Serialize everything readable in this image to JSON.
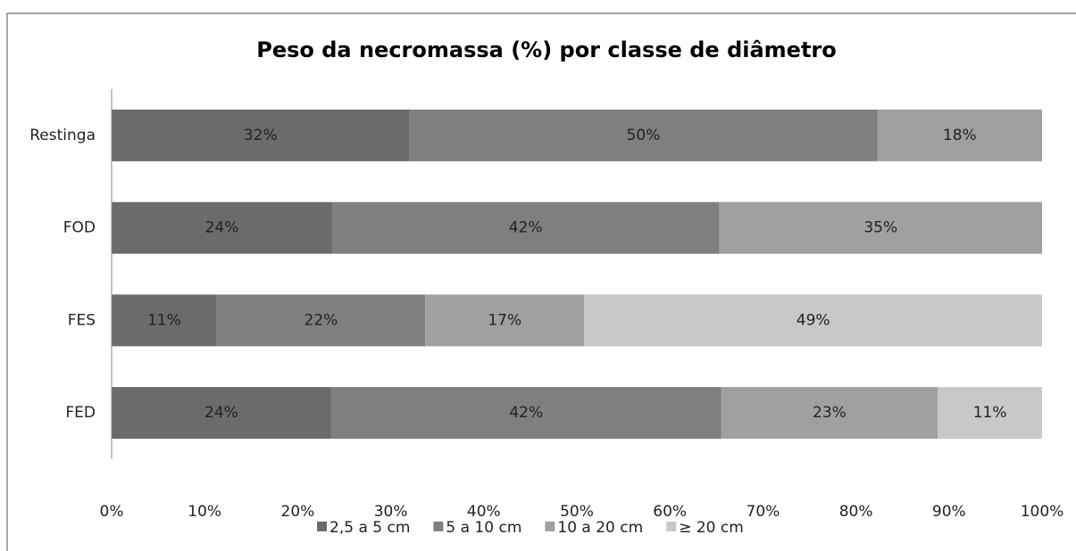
{
  "chart_data": {
    "type": "bar",
    "orientation": "horizontal",
    "stacked": true,
    "title": "Peso da necromassa (%) por classe de diâmetro",
    "categories": [
      "Restinga",
      "FOD",
      "FES",
      "FED"
    ],
    "series": [
      {
        "name": "2,5 a 5 cm",
        "color": "#6b6b6b",
        "values": [
          32,
          23.7,
          11.3,
          23.6
        ],
        "value_labels": [
          "32%",
          "24%",
          "11%",
          "24%"
        ]
      },
      {
        "name": "5 a 10 cm",
        "color": "#7f7f7f",
        "values": [
          50.3,
          41.6,
          22.4,
          41.9
        ],
        "value_labels": [
          "50%",
          "42%",
          "22%",
          "42%"
        ]
      },
      {
        "name": "10 a 20 cm",
        "color": "#a0a0a0",
        "values": [
          17.7,
          34.7,
          17.1,
          23.3
        ],
        "value_labels": [
          "18%",
          "35%",
          "17%",
          "23%"
        ]
      },
      {
        "name": "≥ 20 cm",
        "color": "#c8c8c8",
        "values": [
          null,
          null,
          49.2,
          11.2
        ],
        "value_labels": [
          null,
          null,
          "49%",
          "11%"
        ]
      }
    ],
    "xlim": [
      0,
      100
    ],
    "xticks": [
      {
        "value": 0,
        "label": "0%"
      },
      {
        "value": 10,
        "label": "10%"
      },
      {
        "value": 20,
        "label": "20%"
      },
      {
        "value": 30,
        "label": "30%"
      },
      {
        "value": 40,
        "label": "40%"
      },
      {
        "value": 50,
        "label": "50%"
      },
      {
        "value": 60,
        "label": "60%"
      },
      {
        "value": 70,
        "label": "70%"
      },
      {
        "value": 80,
        "label": "80%"
      },
      {
        "value": 90,
        "label": "90%"
      },
      {
        "value": 100,
        "label": "100%"
      }
    ],
    "legend": "bottom"
  }
}
